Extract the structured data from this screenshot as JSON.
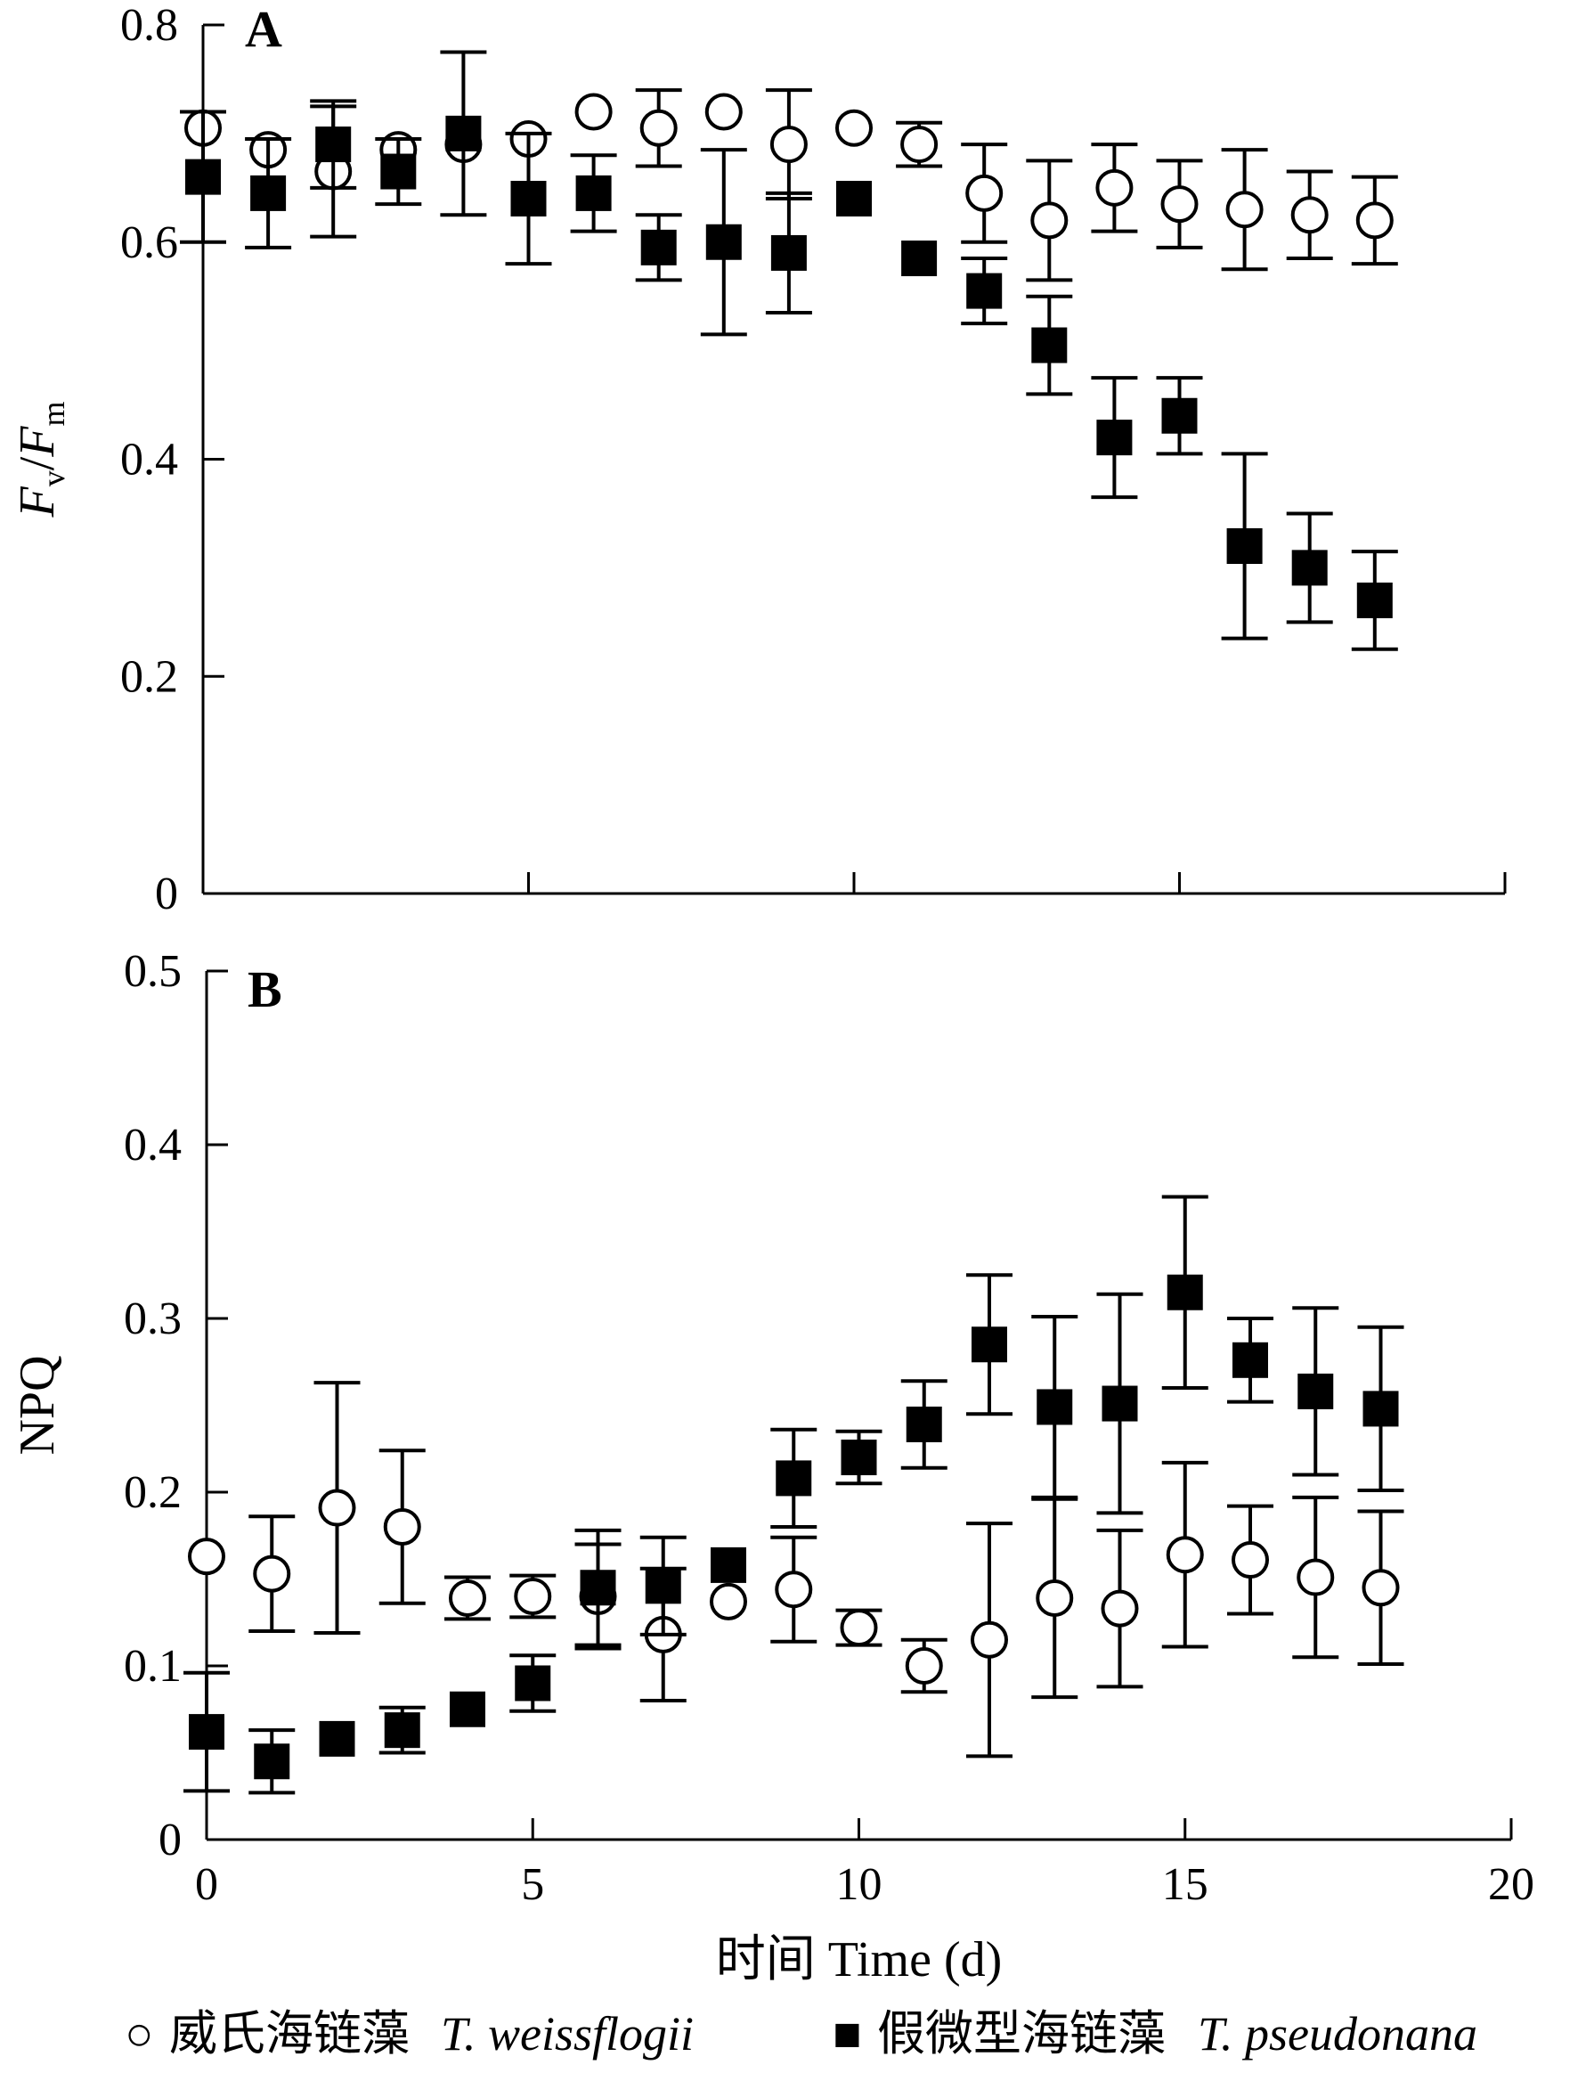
{
  "chart_data": [
    {
      "type": "scatter",
      "panel_label": "A",
      "ylabel": "Fv/Fm",
      "xlabel": "",
      "xlim": [
        0,
        20
      ],
      "ylim": [
        0,
        0.8
      ],
      "xticks": [
        0,
        5,
        10,
        15,
        20
      ],
      "yticks": [
        0,
        0.2,
        0.4,
        0.6,
        0.8
      ],
      "ytick_labels": [
        "0",
        "0.2",
        "0.4",
        "0.6",
        "0.8"
      ],
      "xtick_labels_shown": false,
      "grid": false,
      "series": [
        {
          "name": "威氏海链藻 T. weissflogii",
          "marker": "open-circle",
          "x": [
            0,
            1,
            2,
            3,
            4,
            5,
            6,
            7,
            8,
            9,
            10,
            11,
            12,
            13,
            14,
            15,
            16,
            17,
            18
          ],
          "y": [
            0.705,
            0.685,
            0.665,
            0.685,
            0.69,
            0.695,
            0.72,
            0.705,
            0.72,
            0.69,
            0.705,
            0.69,
            0.645,
            0.62,
            0.65,
            0.635,
            0.63,
            0.625,
            0.62
          ],
          "err": [
            0.0,
            0.0,
            0.06,
            0.0,
            0.0,
            0.0,
            0.0,
            0.035,
            0.0,
            0.05,
            0.0,
            0.02,
            0.045,
            0.055,
            0.04,
            0.04,
            0.055,
            0.04,
            0.04
          ]
        },
        {
          "name": "假微型海链藻 T. pseudonana",
          "marker": "filled-square",
          "x": [
            0,
            1,
            2,
            3,
            4,
            5,
            6,
            7,
            8,
            9,
            10,
            11,
            12,
            13,
            14,
            15,
            16,
            17,
            18
          ],
          "y": [
            0.66,
            0.645,
            0.69,
            0.665,
            0.7,
            0.64,
            0.645,
            0.595,
            0.6,
            0.59,
            0.64,
            0.585,
            0.555,
            0.505,
            0.42,
            0.44,
            0.32,
            0.3,
            0.27
          ],
          "err": [
            0.06,
            0.05,
            0.04,
            0.03,
            0.075,
            0.06,
            0.035,
            0.03,
            0.085,
            0.055,
            0.0,
            0.0,
            0.03,
            0.045,
            0.055,
            0.035,
            0.085,
            0.05,
            0.045
          ]
        }
      ]
    },
    {
      "type": "scatter",
      "panel_label": "B",
      "ylabel": "NPQ",
      "xlabel": "时间 Time (d)",
      "xlim": [
        0,
        20
      ],
      "ylim": [
        0,
        0.5
      ],
      "xticks": [
        0,
        5,
        10,
        15,
        20
      ],
      "xtick_labels": [
        "0",
        "5",
        "10",
        "15",
        "20"
      ],
      "yticks": [
        0,
        0.1,
        0.2,
        0.3,
        0.4,
        0.5
      ],
      "ytick_labels": [
        "0",
        "0.1",
        "0.2",
        "0.3",
        "0.4",
        "0.5"
      ],
      "grid": false,
      "series": [
        {
          "name": "威氏海链藻 T. weissflogii",
          "marker": "open-circle",
          "x": [
            0,
            1,
            2,
            3,
            4,
            5,
            6,
            7,
            8,
            9,
            10,
            11,
            12,
            13,
            14,
            15,
            16,
            17,
            18
          ],
          "y": [
            0.163,
            0.153,
            0.191,
            0.18,
            0.139,
            0.14,
            0.14,
            0.118,
            0.137,
            0.144,
            0.122,
            0.1,
            0.115,
            0.139,
            0.133,
            0.164,
            0.161,
            0.151,
            0.145
          ],
          "err": [
            0.0,
            0.033,
            0.072,
            0.044,
            0.012,
            0.012,
            0.03,
            0.038,
            0.0,
            0.03,
            0.01,
            0.015,
            0.067,
            0.057,
            0.045,
            0.053,
            0.031,
            0.046,
            0.044
          ]
        },
        {
          "name": "假微型海链藻 T. pseudonana",
          "marker": "filled-square",
          "x": [
            0,
            1,
            2,
            3,
            4,
            5,
            6,
            7,
            8,
            9,
            10,
            11,
            12,
            13,
            14,
            15,
            16,
            17,
            18
          ],
          "y": [
            0.062,
            0.045,
            0.058,
            0.063,
            0.075,
            0.09,
            0.145,
            0.146,
            0.158,
            0.208,
            0.22,
            0.239,
            0.285,
            0.249,
            0.251,
            0.315,
            0.276,
            0.258,
            0.248
          ],
          "err": [
            0.034,
            0.018,
            0.0,
            0.013,
            0.0,
            0.016,
            0.033,
            0.028,
            0.0,
            0.028,
            0.015,
            0.025,
            0.04,
            0.052,
            0.063,
            0.055,
            0.024,
            0.048,
            0.047
          ]
        }
      ]
    }
  ],
  "legend": {
    "placement": "bottom",
    "items": [
      {
        "symbol": "○",
        "label_cn": "威氏海链藻",
        "label_latin": "T. weissflogii"
      },
      {
        "symbol": "■",
        "label_cn": "假微型海链藻",
        "label_latin": "T. pseudonana"
      }
    ]
  }
}
